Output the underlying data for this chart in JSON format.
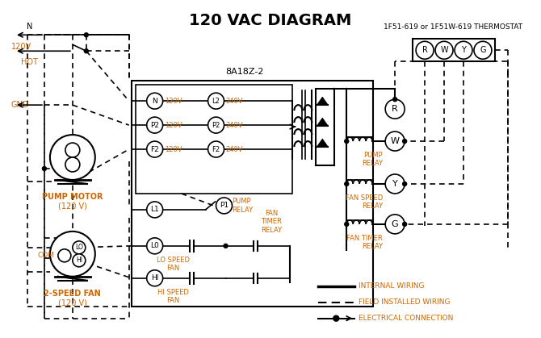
{
  "title": "120 VAC DIAGRAM",
  "title_fontsize": 14,
  "title_fontweight": "bold",
  "bg_color": "#ffffff",
  "text_color": "#000000",
  "orange_color": "#cc6600",
  "line_color": "#000000",
  "thermostat_label": "1F51-619 or 1F51W-619 THERMOSTAT",
  "box_label": "8A18Z-2",
  "terminal_labels": [
    "R",
    "W",
    "Y",
    "G"
  ],
  "pump_motor_label": "PUMP MOTOR",
  "pump_motor_v": "(120 V)",
  "fan_label": "2-SPEED FAN",
  "fan_v": "(120 V)",
  "node_labels_left": [
    "N",
    "P2",
    "F2"
  ],
  "node_labels_right": [
    "L2",
    "P2",
    "F2"
  ],
  "left_v": [
    "120V",
    "120V",
    "120V"
  ],
  "right_v": [
    "240V",
    "240V",
    "240V"
  ],
  "bottom_nodes": [
    "L1",
    "L0",
    "HI",
    "P1"
  ],
  "relay_labels_right": [
    "R",
    "W",
    "Y",
    "G"
  ],
  "relay_text": [
    "PUMP\nRELAY",
    "FAN SPEED\nRELAY",
    "FAN TIMER\nRELAY"
  ],
  "legend": [
    "INTERNAL WIRING",
    "FIELD INSTALLED WIRING",
    "ELECTRICAL CONNECTION"
  ]
}
